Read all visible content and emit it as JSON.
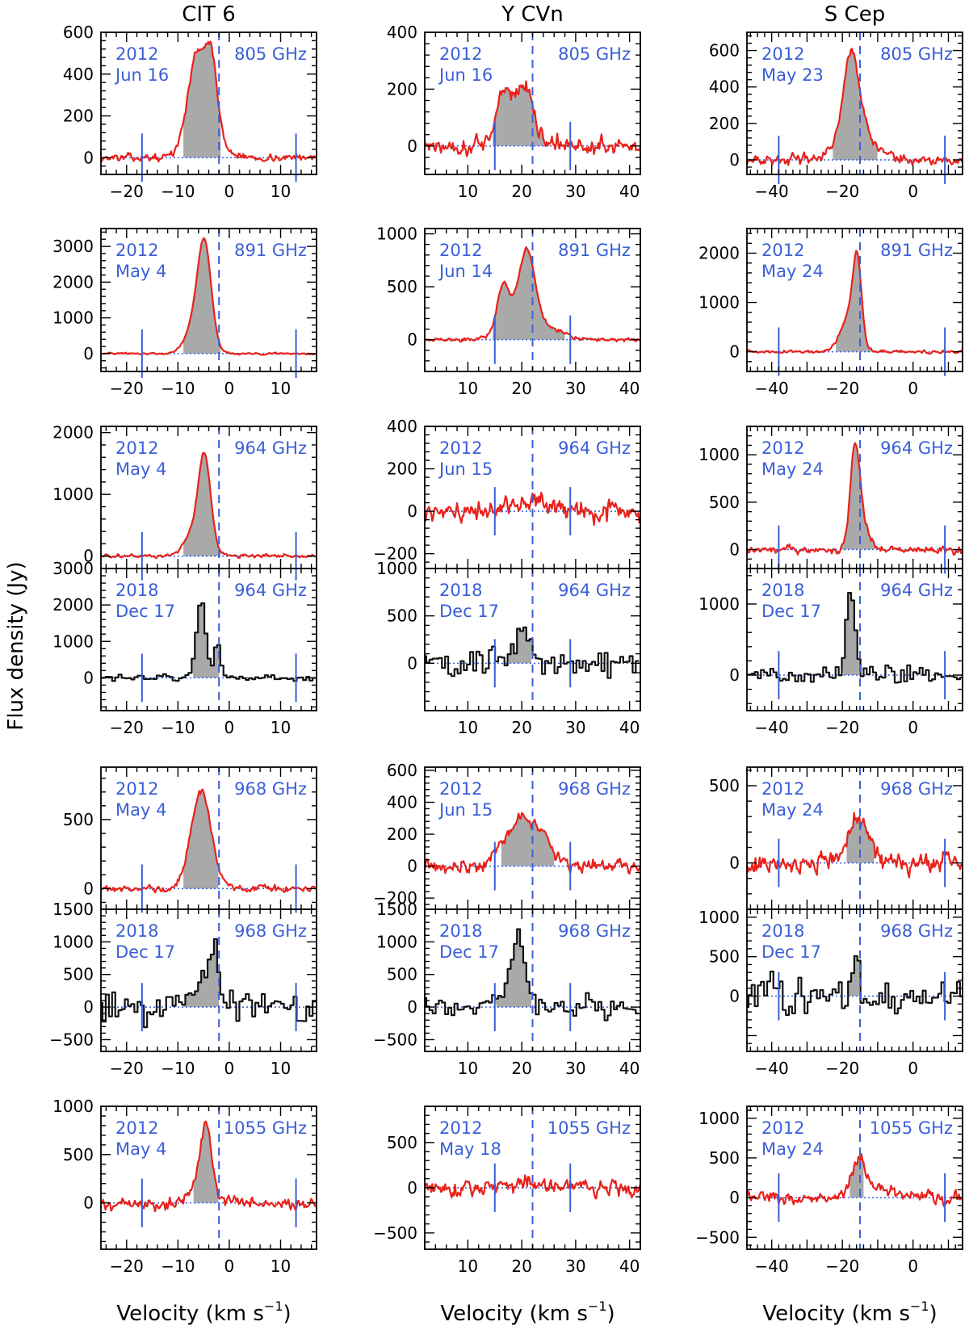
{
  "figure": {
    "ylabel": "Flux density (Jy)",
    "xlabel": "Velocity (km s",
    "xlabel_sup": "−1",
    "xlabel_close": ")",
    "columns": [
      {
        "title": "CIT 6",
        "xlim": [
          -25,
          17
        ],
        "xticks": [
          -20,
          -10,
          0,
          10
        ],
        "vsys": -2.0,
        "vmin": -17.0,
        "vmax": 13.0
      },
      {
        "title": "Y CVn",
        "xlim": [
          2,
          42
        ],
        "xticks": [
          10,
          20,
          30,
          40
        ],
        "vsys": 22.0,
        "vmin": 15.0,
        "vmax": 29.0
      },
      {
        "title": "S Cep",
        "xlim": [
          -47,
          14
        ],
        "xticks": [
          -40,
          -20,
          0
        ],
        "vsys": -15.0,
        "vmin": -38.0,
        "vmax": 9.0
      }
    ],
    "colors": {
      "red_spectrum": "#e8221c",
      "black_spectrum": "#111111",
      "fill": "#a9a9a9",
      "annotation": "#3a5fd8"
    }
  },
  "chart_data": [
    {
      "type": "line",
      "column": 0,
      "row": 0,
      "year": "2012",
      "date": "Jun 16",
      "freq": "805 GHz",
      "style": "red",
      "ylim": [
        -80,
        600
      ],
      "yticks": [
        0,
        200,
        400,
        600
      ],
      "peaks": [
        {
          "v": -6.5,
          "a": 380,
          "w": 1.6
        },
        {
          "v": -3.5,
          "a": 360,
          "w": 1.2
        },
        {
          "v": -5,
          "a": 120,
          "w": 3
        }
      ],
      "noise": 20,
      "step": 0.22,
      "fill": [
        -9,
        -1.5
      ],
      "series": [
        {
          "name": "",
          "x_range": [
            -25,
            17
          ],
          "values": []
        }
      ]
    },
    {
      "type": "line",
      "column": 1,
      "row": 0,
      "year": "2012",
      "date": "Jun 16",
      "freq": "805 GHz",
      "style": "red",
      "ylim": [
        -100,
        400
      ],
      "yticks": [
        0,
        200,
        400
      ],
      "peaks": [
        {
          "v": 16.5,
          "a": 150,
          "w": 1.2
        },
        {
          "v": 20.5,
          "a": 160,
          "w": 1.5
        },
        {
          "v": 19,
          "a": 70,
          "w": 3
        }
      ],
      "noise": 35,
      "step": 0.2,
      "fill": [
        14.5,
        25
      ],
      "series": [
        {
          "name": "",
          "x_range": [
            2,
            42
          ],
          "values": []
        }
      ]
    },
    {
      "type": "line",
      "column": 2,
      "row": 0,
      "year": "2012",
      "date": "May 23",
      "freq": "805 GHz",
      "style": "red",
      "ylim": [
        -80,
        700
      ],
      "yticks": [
        0,
        200,
        400,
        600
      ],
      "peaks": [
        {
          "v": -17.5,
          "a": 460,
          "w": 2.2
        },
        {
          "v": -16,
          "a": 150,
          "w": 5
        }
      ],
      "noise": 30,
      "step": 0.3,
      "fill": [
        -23,
        -10
      ],
      "series": [
        {
          "name": "",
          "x_range": [
            -47,
            14
          ],
          "values": []
        }
      ]
    },
    {
      "type": "line",
      "column": 0,
      "row": 1,
      "year": "2012",
      "date": "May 4",
      "freq": "891 GHz",
      "style": "red",
      "ylim": [
        -500,
        3500
      ],
      "yticks": [
        0,
        1000,
        2000,
        3000
      ],
      "peaks": [
        {
          "v": -4.8,
          "a": 2500,
          "w": 1.3
        },
        {
          "v": -6.2,
          "a": 900,
          "w": 2.0
        }
      ],
      "noise": 30,
      "step": 0.22,
      "fill": [
        -9,
        -1.5
      ],
      "series": [
        {
          "name": "",
          "x_range": [
            -25,
            17
          ],
          "values": []
        }
      ]
    },
    {
      "type": "line",
      "column": 1,
      "row": 1,
      "year": "2012",
      "date": "Jun 14",
      "freq": "891 GHz",
      "style": "red",
      "ylim": [
        -300,
        1050
      ],
      "yticks": [
        0,
        500,
        1000
      ],
      "peaks": [
        {
          "v": 16.5,
          "a": 380,
          "w": 1.0
        },
        {
          "v": 21,
          "a": 640,
          "w": 1.5
        },
        {
          "v": 19,
          "a": 220,
          "w": 3
        },
        {
          "v": 25,
          "a": 90,
          "w": 3
        }
      ],
      "noise": 22,
      "step": 0.2,
      "fill": [
        14.5,
        28
      ],
      "series": [
        {
          "name": "",
          "x_range": [
            2,
            42
          ],
          "values": []
        }
      ]
    },
    {
      "type": "line",
      "column": 2,
      "row": 1,
      "year": "2012",
      "date": "May 24",
      "freq": "891 GHz",
      "style": "red",
      "ylim": [
        -400,
        2500
      ],
      "yticks": [
        0,
        1000,
        2000
      ],
      "peaks": [
        {
          "v": -15.8,
          "a": 1550,
          "w": 1.2
        },
        {
          "v": -18,
          "a": 700,
          "w": 2.5
        }
      ],
      "noise": 35,
      "step": 0.3,
      "fill": [
        -22,
        -11
      ],
      "series": [
        {
          "name": "",
          "x_range": [
            -47,
            14
          ],
          "values": []
        }
      ]
    },
    {
      "type": "line",
      "column": 0,
      "row": 2,
      "year": "2012",
      "date": "May 4",
      "freq": "964 GHz",
      "style": "red",
      "ylim": [
        -200,
        2100
      ],
      "yticks": [
        0,
        1000,
        2000
      ],
      "peaks": [
        {
          "v": -4.8,
          "a": 1250,
          "w": 1.1
        },
        {
          "v": -6,
          "a": 500,
          "w": 2.2
        }
      ],
      "noise": 35,
      "step": 0.22,
      "fill": [
        -9,
        -1.5
      ],
      "series": [
        {
          "name": "",
          "x_range": [
            -25,
            17
          ],
          "values": []
        }
      ]
    },
    {
      "type": "line",
      "column": 1,
      "row": 2,
      "year": "2012",
      "date": "Jun 15",
      "freq": "964 GHz",
      "style": "red",
      "ylim": [
        -270,
        400
      ],
      "yticks": [
        -200,
        0,
        200,
        400
      ],
      "peaks": [
        {
          "v": 21,
          "a": 50,
          "w": 4
        }
      ],
      "noise": 55,
      "step": 0.2,
      "fill": null,
      "series": [
        {
          "name": "",
          "x_range": [
            2,
            42
          ],
          "values": []
        }
      ]
    },
    {
      "type": "line",
      "column": 2,
      "row": 2,
      "year": "2012",
      "date": "May 24",
      "freq": "964 GHz",
      "style": "red",
      "ylim": [
        -200,
        1300
      ],
      "yticks": [
        0,
        500,
        1000
      ],
      "peaks": [
        {
          "v": -16.5,
          "a": 950,
          "w": 1.3
        },
        {
          "v": -14.5,
          "a": 300,
          "w": 2
        }
      ],
      "noise": 45,
      "step": 0.3,
      "fill": [
        -21,
        -11
      ],
      "series": [
        {
          "name": "",
          "x_range": [
            -47,
            14
          ],
          "values": []
        }
      ]
    },
    {
      "type": "line",
      "column": 0,
      "row": 3,
      "year": "2018",
      "date": "Dec 17",
      "freq": "964 GHz",
      "style": "black",
      "ylim": [
        -900,
        3000
      ],
      "yticks": [
        0,
        1000,
        2000,
        3000
      ],
      "peaks": [
        {
          "v": -5.5,
          "a": 2150,
          "w": 0.9
        },
        {
          "v": -2.3,
          "a": 1000,
          "w": 0.6
        }
      ],
      "noise": 60,
      "step": 0.62,
      "fill": [
        -7.5,
        -1.5
      ],
      "series": [
        {
          "name": "",
          "x_range": [
            -25,
            17
          ],
          "values": []
        }
      ]
    },
    {
      "type": "line",
      "column": 1,
      "row": 3,
      "year": "2018",
      "date": "Dec 17",
      "freq": "964 GHz",
      "style": "black",
      "ylim": [
        -500,
        1000
      ],
      "yticks": [
        0,
        500,
        1000
      ],
      "peaks": [
        {
          "v": 20,
          "a": 420,
          "w": 1.2
        }
      ],
      "noise": 110,
      "step": 0.58,
      "fill": [
        17.5,
        22
      ],
      "series": [
        {
          "name": "",
          "x_range": [
            2,
            42
          ],
          "values": []
        }
      ]
    },
    {
      "type": "line",
      "column": 2,
      "row": 3,
      "year": "2018",
      "date": "Dec 17",
      "freq": "964 GHz",
      "style": "black",
      "ylim": [
        -500,
        1500
      ],
      "yticks": [
        0,
        1000
      ],
      "peaks": [
        {
          "v": -18,
          "a": 1200,
          "w": 1.0
        },
        {
          "v": -16.2,
          "a": 450,
          "w": 0.6
        }
      ],
      "noise": 90,
      "step": 0.88,
      "fill": [
        -20,
        -15
      ],
      "series": [
        {
          "name": "",
          "x_range": [
            -47,
            14
          ],
          "values": []
        }
      ]
    },
    {
      "type": "line",
      "column": 0,
      "row": 4,
      "year": "2012",
      "date": "May 4",
      "freq": "968 GHz",
      "style": "red",
      "ylim": [
        -150,
        880
      ],
      "yticks": [
        0,
        500
      ],
      "peaks": [
        {
          "v": -5.5,
          "a": 700,
          "w": 2.0
        }
      ],
      "noise": 30,
      "step": 0.22,
      "fill": [
        -9,
        -2
      ],
      "series": [
        {
          "name": "",
          "x_range": [
            -25,
            17
          ],
          "values": []
        }
      ]
    },
    {
      "type": "line",
      "column": 1,
      "row": 4,
      "year": "2012",
      "date": "Jun 15",
      "freq": "968 GHz",
      "style": "red",
      "ylim": [
        -270,
        620
      ],
      "yticks": [
        -200,
        0,
        200,
        400,
        600
      ],
      "peaks": [
        {
          "v": 20,
          "a": 300,
          "w": 3.0
        },
        {
          "v": 24,
          "a": 80,
          "w": 2
        }
      ],
      "noise": 45,
      "step": 0.2,
      "fill": [
        16,
        26
      ],
      "series": [
        {
          "name": "",
          "x_range": [
            2,
            42
          ],
          "values": []
        }
      ]
    },
    {
      "type": "line",
      "column": 2,
      "row": 4,
      "year": "2012",
      "date": "May 24",
      "freq": "968 GHz",
      "style": "red",
      "ylim": [
        -300,
        620
      ],
      "yticks": [
        0,
        500
      ],
      "peaks": [
        {
          "v": -15.5,
          "a": 300,
          "w": 3.0
        }
      ],
      "noise": 70,
      "step": 0.3,
      "fill": [
        -19,
        -11
      ],
      "series": [
        {
          "name": "",
          "x_range": [
            -47,
            14
          ],
          "values": []
        }
      ]
    },
    {
      "type": "line",
      "column": 0,
      "row": 5,
      "year": "2018",
      "date": "Dec 17",
      "freq": "968 GHz",
      "style": "black",
      "ylim": [
        -680,
        1500
      ],
      "yticks": [
        -500,
        0,
        500,
        1000,
        1500
      ],
      "peaks": [
        {
          "v": -5,
          "a": 450,
          "w": 2.5
        },
        {
          "v": -2.8,
          "a": 550,
          "w": 0.7
        }
      ],
      "noise": 170,
      "step": 0.62,
      "fill": [
        -9,
        -2
      ],
      "series": [
        {
          "name": "",
          "x_range": [
            -25,
            17
          ],
          "values": []
        }
      ]
    },
    {
      "type": "line",
      "column": 1,
      "row": 5,
      "year": "2018",
      "date": "Dec 17",
      "freq": "968 GHz",
      "style": "black",
      "ylim": [
        -680,
        1500
      ],
      "yticks": [
        -500,
        0,
        500,
        1000,
        1500
      ],
      "peaks": [
        {
          "v": 19.5,
          "a": 800,
          "w": 1.2
        },
        {
          "v": 18,
          "a": 250,
          "w": 2.5
        }
      ],
      "noise": 120,
      "step": 0.58,
      "fill": [
        15,
        22
      ],
      "series": [
        {
          "name": "",
          "x_range": [
            2,
            42
          ],
          "values": []
        }
      ]
    },
    {
      "type": "line",
      "column": 2,
      "row": 5,
      "year": "2018",
      "date": "Dec 17",
      "freq": "968 GHz",
      "style": "black",
      "ylim": [
        -700,
        1100
      ],
      "yticks": [
        0,
        500,
        1000
      ],
      "peaks": [
        {
          "v": -16,
          "a": 550,
          "w": 0.9
        }
      ],
      "noise": 160,
      "step": 0.88,
      "fill": [
        -20,
        -15
      ],
      "series": [
        {
          "name": "",
          "x_range": [
            -47,
            14
          ],
          "values": []
        }
      ]
    },
    {
      "type": "line",
      "column": 0,
      "row": 6,
      "year": "2012",
      "date": "May 4",
      "freq": "1055 GHz",
      "style": "red",
      "ylim": [
        -480,
        1000
      ],
      "yticks": [
        0,
        500,
        1000
      ],
      "peaks": [
        {
          "v": -4.5,
          "a": 650,
          "w": 1.0
        },
        {
          "v": -5.5,
          "a": 200,
          "w": 2
        }
      ],
      "noise": 75,
      "step": 0.22,
      "fill": [
        -7,
        -2
      ],
      "series": [
        {
          "name": "",
          "x_range": [
            -25,
            17
          ],
          "values": []
        }
      ]
    },
    {
      "type": "line",
      "column": 1,
      "row": 6,
      "year": "2012",
      "date": "May 18",
      "freq": "1055 GHz",
      "style": "red",
      "ylim": [
        -680,
        900
      ],
      "yticks": [
        -500,
        0,
        500
      ],
      "peaks": [
        {
          "v": 22,
          "a": 50,
          "w": 5
        }
      ],
      "noise": 100,
      "step": 0.2,
      "fill": null,
      "series": [
        {
          "name": "",
          "x_range": [
            2,
            42
          ],
          "values": []
        }
      ]
    },
    {
      "type": "line",
      "column": 2,
      "row": 6,
      "year": "2012",
      "date": "May 24",
      "freq": "1055 GHz",
      "style": "red",
      "ylim": [
        -650,
        1150
      ],
      "yticks": [
        -500,
        0,
        500,
        1000
      ],
      "peaks": [
        {
          "v": -15.5,
          "a": 380,
          "w": 1.8
        },
        {
          "v": -11,
          "a": 150,
          "w": 5
        }
      ],
      "noise": 95,
      "step": 0.3,
      "fill": [
        -18,
        -14
      ],
      "series": [
        {
          "name": "",
          "x_range": [
            -47,
            14
          ],
          "values": []
        }
      ]
    }
  ]
}
